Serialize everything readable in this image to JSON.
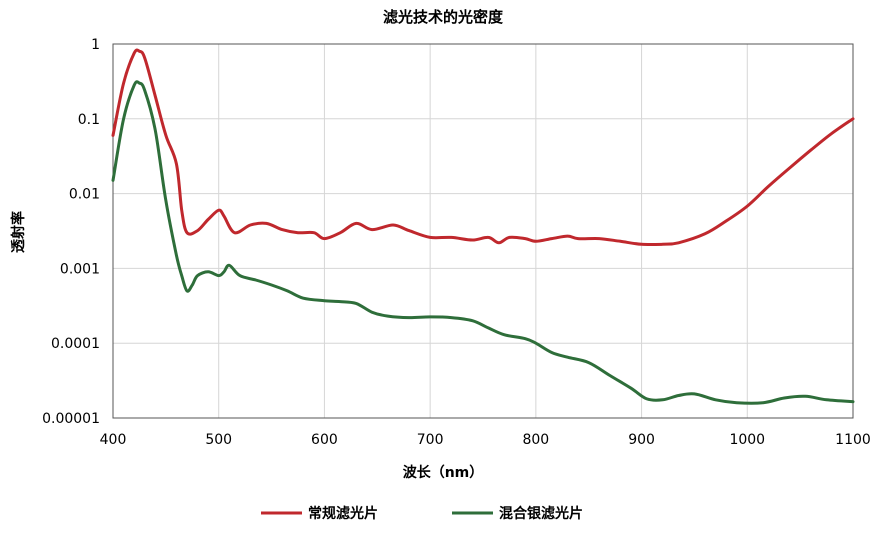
{
  "chart_data": {
    "type": "line",
    "title": "滤光技术的光密度",
    "xlabel": "波长（nm）",
    "ylabel": "透射率",
    "xlim": [
      400,
      1100
    ],
    "ylim": [
      1e-05,
      1
    ],
    "yscale": "log",
    "grid": true,
    "legend_position": "bottom",
    "x_ticks": [
      "400",
      "500",
      "600",
      "700",
      "800",
      "900",
      "1000",
      "1100"
    ],
    "y_ticks": [
      "1",
      "0.1",
      "0.01",
      "0.001",
      "0.0001",
      "0.00001"
    ],
    "series": [
      {
        "name": "常规滤光片",
        "color": "#c0282d",
        "points": [
          [
            400,
            0.06
          ],
          [
            410,
            0.3
          ],
          [
            420,
            0.75
          ],
          [
            425,
            0.8
          ],
          [
            430,
            0.65
          ],
          [
            440,
            0.2
          ],
          [
            450,
            0.06
          ],
          [
            460,
            0.025
          ],
          [
            465,
            0.006
          ],
          [
            470,
            0.003
          ],
          [
            480,
            0.0032
          ],
          [
            490,
            0.0045
          ],
          [
            500,
            0.006
          ],
          [
            505,
            0.005
          ],
          [
            515,
            0.003
          ],
          [
            530,
            0.0038
          ],
          [
            545,
            0.004
          ],
          [
            560,
            0.0033
          ],
          [
            575,
            0.003
          ],
          [
            590,
            0.003
          ],
          [
            600,
            0.0025
          ],
          [
            615,
            0.003
          ],
          [
            630,
            0.004
          ],
          [
            645,
            0.0033
          ],
          [
            665,
            0.0038
          ],
          [
            680,
            0.0032
          ],
          [
            700,
            0.0026
          ],
          [
            720,
            0.0026
          ],
          [
            740,
            0.0024
          ],
          [
            755,
            0.0026
          ],
          [
            765,
            0.0022
          ],
          [
            775,
            0.0026
          ],
          [
            790,
            0.0025
          ],
          [
            800,
            0.0023
          ],
          [
            815,
            0.0025
          ],
          [
            830,
            0.0027
          ],
          [
            840,
            0.0025
          ],
          [
            860,
            0.0025
          ],
          [
            880,
            0.0023
          ],
          [
            900,
            0.0021
          ],
          [
            920,
            0.0021
          ],
          [
            935,
            0.0022
          ],
          [
            960,
            0.0029
          ],
          [
            980,
            0.0043
          ],
          [
            1000,
            0.0068
          ],
          [
            1020,
            0.0125
          ],
          [
            1040,
            0.022
          ],
          [
            1060,
            0.038
          ],
          [
            1080,
            0.064
          ],
          [
            1100,
            0.1
          ]
        ]
      },
      {
        "name": "混合银滤光片",
        "color": "#2e6e3a",
        "points": [
          [
            400,
            0.015
          ],
          [
            410,
            0.1
          ],
          [
            420,
            0.28
          ],
          [
            425,
            0.3
          ],
          [
            430,
            0.24
          ],
          [
            440,
            0.07
          ],
          [
            450,
            0.008
          ],
          [
            460,
            0.0015
          ],
          [
            465,
            0.0008
          ],
          [
            470,
            0.0005
          ],
          [
            475,
            0.0006
          ],
          [
            480,
            0.0008
          ],
          [
            490,
            0.0009
          ],
          [
            500,
            0.0008
          ],
          [
            505,
            0.0009
          ],
          [
            510,
            0.0011
          ],
          [
            520,
            0.0008
          ],
          [
            535,
            0.0007
          ],
          [
            550,
            0.0006
          ],
          [
            565,
            0.0005
          ],
          [
            580,
            0.0004
          ],
          [
            600,
            0.00037
          ],
          [
            615,
            0.00036
          ],
          [
            630,
            0.00034
          ],
          [
            645,
            0.00026
          ],
          [
            660,
            0.00023
          ],
          [
            680,
            0.00022
          ],
          [
            700,
            0.000225
          ],
          [
            720,
            0.00022
          ],
          [
            740,
            0.0002
          ],
          [
            755,
            0.00016
          ],
          [
            770,
            0.00013
          ],
          [
            790,
            0.000115
          ],
          [
            800,
            0.0001
          ],
          [
            815,
            7.5e-05
          ],
          [
            830,
            6.5e-05
          ],
          [
            850,
            5.5e-05
          ],
          [
            870,
            3.7e-05
          ],
          [
            890,
            2.5e-05
          ],
          [
            905,
            1.8e-05
          ],
          [
            920,
            1.75e-05
          ],
          [
            935,
            2e-05
          ],
          [
            950,
            2.1e-05
          ],
          [
            970,
            1.75e-05
          ],
          [
            990,
            1.6e-05
          ],
          [
            1015,
            1.6e-05
          ],
          [
            1035,
            1.85e-05
          ],
          [
            1055,
            1.95e-05
          ],
          [
            1075,
            1.75e-05
          ],
          [
            1100,
            1.65e-05
          ]
        ]
      }
    ]
  }
}
